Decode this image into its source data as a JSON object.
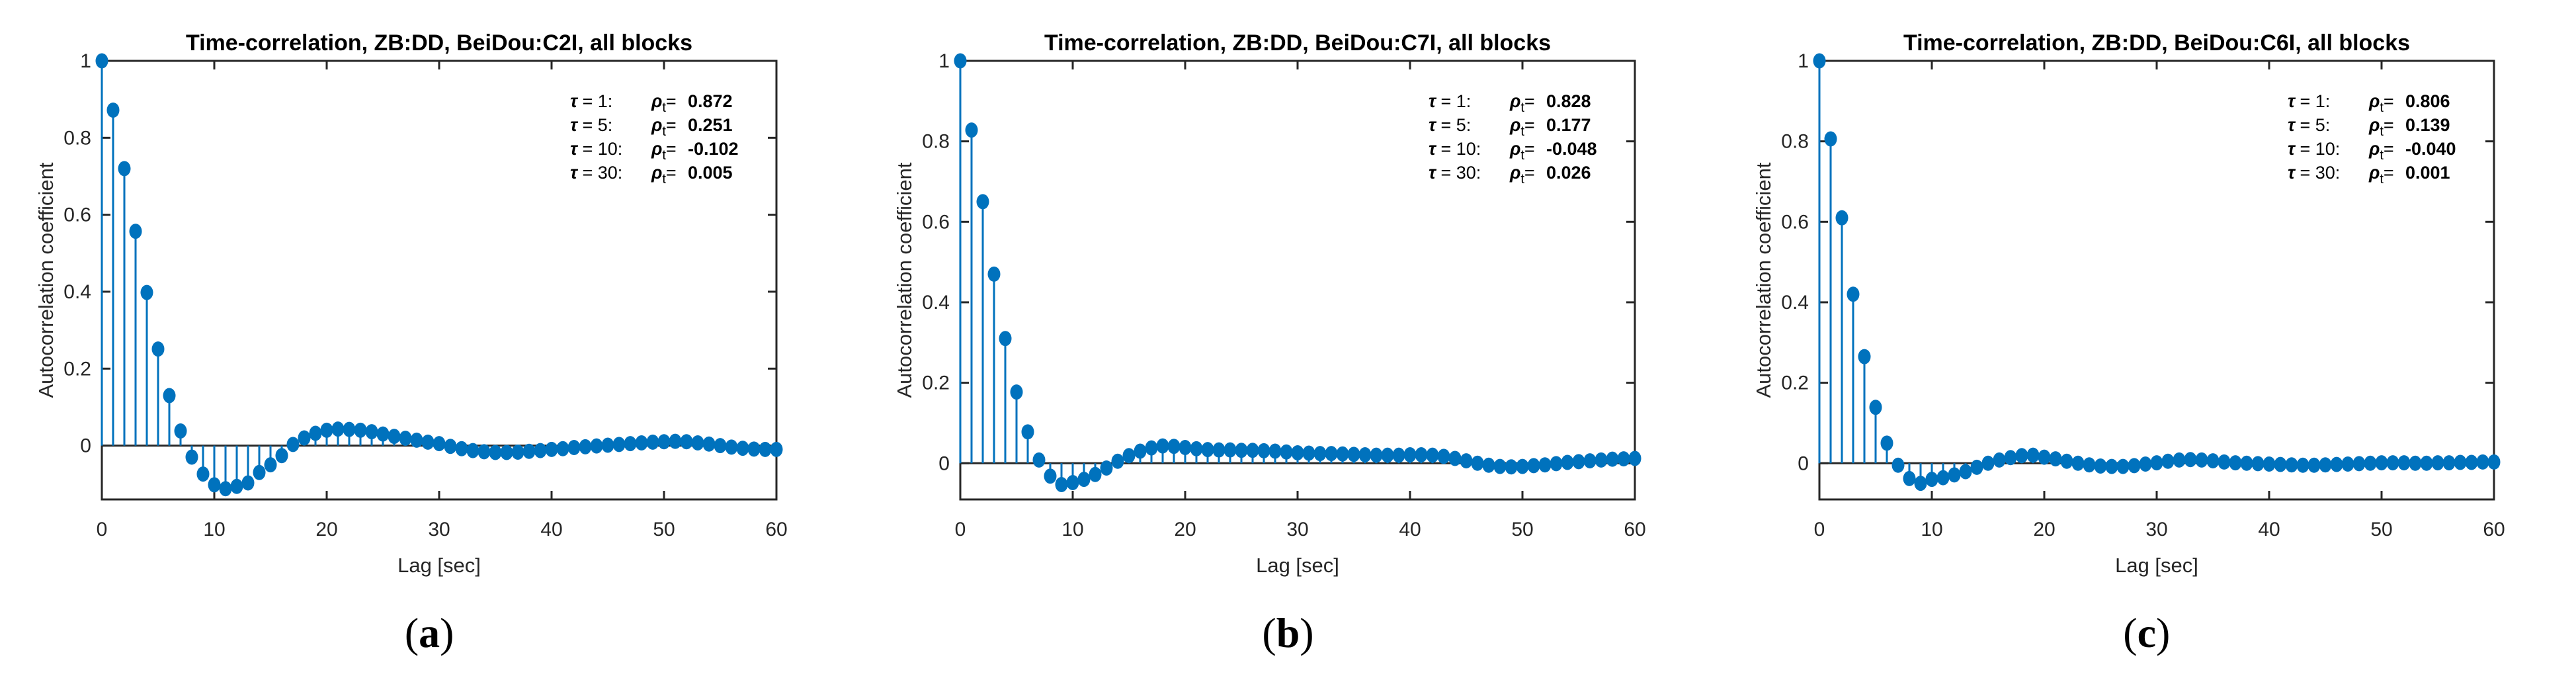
{
  "figure": {
    "background": "#ffffff",
    "panels": [
      {
        "caption": {
          "open": "(",
          "letter": "a",
          "close": ")"
        },
        "chart_index": 0
      },
      {
        "caption": {
          "open": "(",
          "letter": "b",
          "close": ")"
        },
        "chart_index": 1
      },
      {
        "caption": {
          "open": "(",
          "letter": "c",
          "close": ")"
        },
        "chart_index": 2
      }
    ]
  },
  "chart_data": [
    {
      "type": "stem",
      "title": "Time-correlation, ZB:DD, BeiDou:C2I, all blocks",
      "xlabel": "Lag [sec]",
      "ylabel": "Autocorrelation coefficient",
      "x_range": [
        0,
        60,
        1
      ],
      "xlim": [
        0,
        60
      ],
      "ylim": [
        -0.14,
        1.0
      ],
      "xticks": [
        0,
        10,
        20,
        30,
        40,
        50,
        60
      ],
      "yticks": [
        0,
        0.2,
        0.4,
        0.6,
        0.8,
        1
      ],
      "ytick_labels": [
        "0",
        "0.2",
        "0.4",
        "0.6",
        "0.8",
        "1"
      ],
      "grid": false,
      "legend": "none",
      "marker": "filled-circle",
      "stem_color": "#0072BD",
      "axis_color": "#262626",
      "values": [
        1.0,
        0.872,
        0.72,
        0.557,
        0.398,
        0.251,
        0.13,
        0.038,
        -0.03,
        -0.074,
        -0.102,
        -0.112,
        -0.106,
        -0.097,
        -0.07,
        -0.05,
        -0.026,
        0.003,
        0.02,
        0.032,
        0.04,
        0.043,
        0.042,
        0.04,
        0.036,
        0.03,
        0.024,
        0.019,
        0.014,
        0.009,
        0.005,
        -0.002,
        -0.008,
        -0.013,
        -0.016,
        -0.018,
        -0.018,
        -0.017,
        -0.015,
        -0.013,
        -0.01,
        -0.008,
        -0.005,
        -0.003,
        -0.001,
        0.001,
        0.003,
        0.005,
        0.007,
        0.009,
        0.01,
        0.011,
        0.01,
        0.007,
        0.004,
        0.0,
        -0.004,
        -0.007,
        -0.009,
        -0.01,
        -0.01
      ],
      "annotations": [
        {
          "tau": 1,
          "rho_t": 0.872
        },
        {
          "tau": 5,
          "rho_t": 0.251
        },
        {
          "tau": 10,
          "rho_t": -0.102
        },
        {
          "tau": 30,
          "rho_t": 0.005
        }
      ]
    },
    {
      "type": "stem",
      "title": "Time-correlation, ZB:DD, BeiDou:C7I, all blocks",
      "xlabel": "Lag [sec]",
      "ylabel": "Autocorrelation coefficient",
      "x_range": [
        0,
        60,
        1
      ],
      "xlim": [
        0,
        60
      ],
      "ylim": [
        -0.09,
        1.0
      ],
      "xticks": [
        0,
        10,
        20,
        30,
        40,
        50,
        60
      ],
      "yticks": [
        0,
        0.2,
        0.4,
        0.6,
        0.8,
        1
      ],
      "ytick_labels": [
        "0",
        "0.2",
        "0.4",
        "0.6",
        "0.8",
        "1"
      ],
      "grid": false,
      "legend": "none",
      "marker": "filled-circle",
      "stem_color": "#0072BD",
      "axis_color": "#262626",
      "values": [
        1.0,
        0.828,
        0.65,
        0.47,
        0.31,
        0.177,
        0.078,
        0.008,
        -0.032,
        -0.053,
        -0.048,
        -0.04,
        -0.028,
        -0.012,
        0.005,
        0.019,
        0.03,
        0.038,
        0.043,
        0.042,
        0.039,
        0.036,
        0.034,
        0.033,
        0.033,
        0.032,
        0.032,
        0.031,
        0.03,
        0.028,
        0.026,
        0.025,
        0.024,
        0.024,
        0.023,
        0.022,
        0.021,
        0.02,
        0.02,
        0.02,
        0.021,
        0.021,
        0.02,
        0.017,
        0.012,
        0.006,
        0.0,
        -0.005,
        -0.008,
        -0.009,
        -0.008,
        -0.006,
        -0.004,
        -0.001,
        0.002,
        0.004,
        0.006,
        0.008,
        0.01,
        0.011,
        0.012
      ],
      "annotations": [
        {
          "tau": 1,
          "rho_t": 0.828
        },
        {
          "tau": 5,
          "rho_t": 0.177
        },
        {
          "tau": 10,
          "rho_t": -0.048
        },
        {
          "tau": 30,
          "rho_t": 0.026
        }
      ]
    },
    {
      "type": "stem",
      "title": "Time-correlation, ZB:DD, BeiDou:C6I, all blocks",
      "xlabel": "Lag [sec]",
      "ylabel": "Autocorrelation coefficient",
      "x_range": [
        0,
        60,
        1
      ],
      "xlim": [
        0,
        60
      ],
      "ylim": [
        -0.09,
        1.0
      ],
      "xticks": [
        0,
        10,
        20,
        30,
        40,
        50,
        60
      ],
      "yticks": [
        0,
        0.2,
        0.4,
        0.6,
        0.8,
        1
      ],
      "ytick_labels": [
        "0",
        "0.2",
        "0.4",
        "0.6",
        "0.8",
        "1"
      ],
      "grid": false,
      "legend": "none",
      "marker": "filled-circle",
      "stem_color": "#0072BD",
      "axis_color": "#262626",
      "values": [
        1.0,
        0.806,
        0.61,
        0.42,
        0.265,
        0.139,
        0.05,
        -0.005,
        -0.038,
        -0.05,
        -0.04,
        -0.036,
        -0.029,
        -0.021,
        -0.01,
        0.0,
        0.008,
        0.014,
        0.019,
        0.02,
        0.015,
        0.011,
        0.005,
        0.0,
        -0.004,
        -0.007,
        -0.008,
        -0.008,
        -0.006,
        -0.002,
        0.001,
        0.005,
        0.008,
        0.009,
        0.008,
        0.006,
        0.003,
        0.001,
        0.0,
        -0.001,
        -0.002,
        -0.003,
        -0.004,
        -0.005,
        -0.005,
        -0.004,
        -0.003,
        -0.002,
        -0.001,
        0.0,
        0.001,
        0.001,
        0.001,
        0.0,
        0.0,
        0.001,
        0.001,
        0.002,
        0.002,
        0.003,
        0.003
      ],
      "annotations": [
        {
          "tau": 1,
          "rho_t": 0.806
        },
        {
          "tau": 5,
          "rho_t": 0.139
        },
        {
          "tau": 10,
          "rho_t": -0.04
        },
        {
          "tau": 30,
          "rho_t": 0.001
        }
      ]
    }
  ],
  "annotation_labels": {
    "tau_symbol": "τ",
    "rho_symbol": "ρ",
    "rho_subscript": "t",
    "equals": "="
  }
}
